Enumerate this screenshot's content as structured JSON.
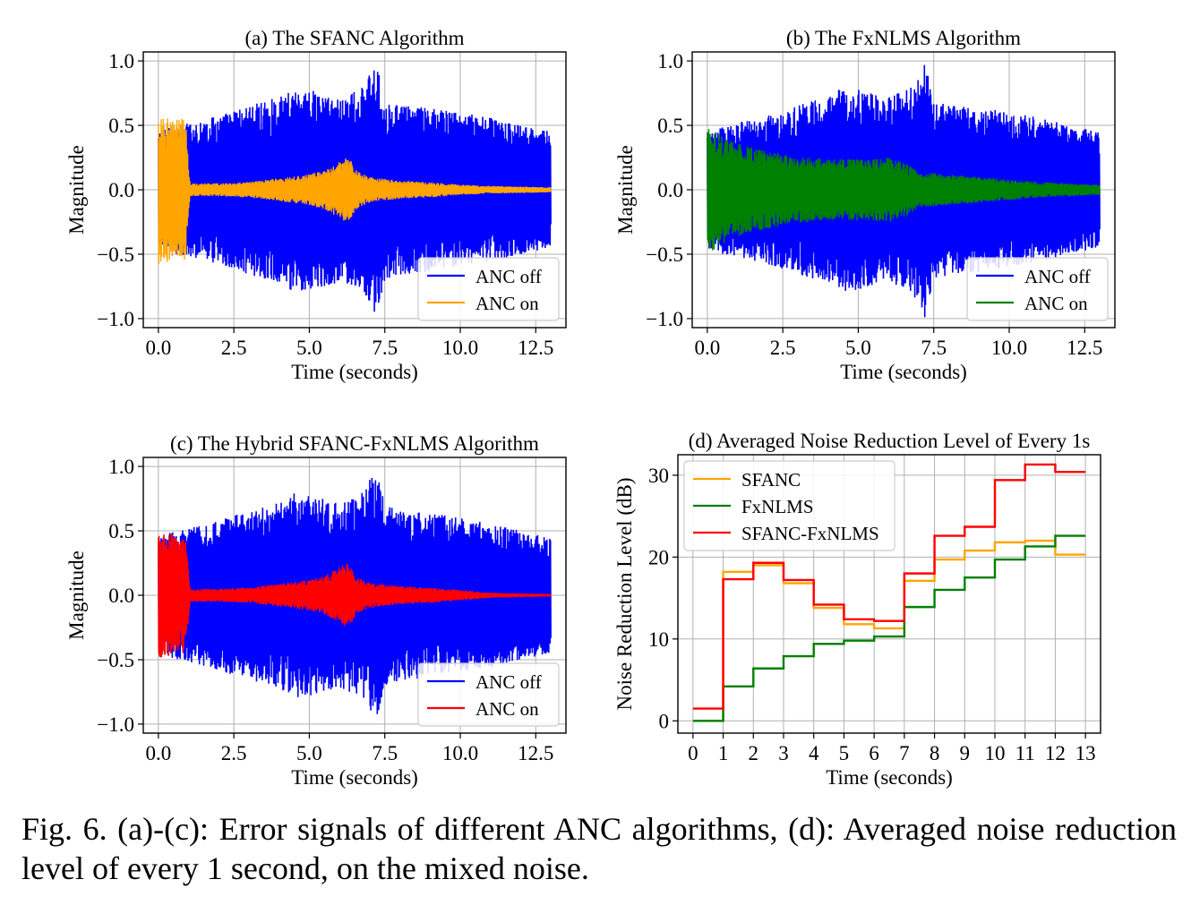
{
  "caption": "Fig. 6.  (a)-(c): Error signals of different ANC algorithms, (d): Averaged noise reduction level of every 1 second, on the mixed noise.",
  "chart_data": [
    {
      "type": "line",
      "panel": "a",
      "title": "(a) The SFANC Algorithm",
      "xlabel": "Time (seconds)",
      "ylabel": "Magnitude",
      "xlim": [
        -0.5,
        13.5
      ],
      "ylim": [
        -1.07,
        1.07
      ],
      "x_ticks": [
        "0.0",
        "2.5",
        "5.0",
        "7.5",
        "10.0",
        "12.5"
      ],
      "y_ticks": [
        "−1.0",
        "−0.5",
        "0.0",
        "0.5",
        "1.0"
      ],
      "grid": true,
      "legend_position": "lower-right",
      "series": [
        {
          "name": "ANC off",
          "color": "#0000ff",
          "envelope_time": [
            0,
            0.5,
            1,
            2,
            3,
            4,
            4.5,
            5,
            6,
            6.8,
            7.2,
            7.5,
            8,
            9,
            10,
            11,
            12,
            13
          ],
          "envelope_amplitude": [
            0.45,
            0.5,
            0.52,
            0.58,
            0.66,
            0.72,
            0.8,
            0.78,
            0.72,
            0.8,
            1.0,
            0.7,
            0.66,
            0.64,
            0.6,
            0.56,
            0.5,
            0.45
          ]
        },
        {
          "name": "ANC on",
          "color": "#ffa500",
          "envelope_time": [
            0,
            0.9,
            1.05,
            2,
            3,
            4,
            5,
            5.5,
            6,
            6.3,
            6.6,
            7,
            8,
            9,
            10,
            11,
            12,
            13
          ],
          "envelope_amplitude": [
            0.58,
            0.55,
            0.05,
            0.05,
            0.06,
            0.09,
            0.12,
            0.15,
            0.22,
            0.26,
            0.14,
            0.1,
            0.07,
            0.06,
            0.04,
            0.03,
            0.025,
            0.02
          ]
        }
      ]
    },
    {
      "type": "line",
      "panel": "b",
      "title": "(b) The FxNLMS Algorithm",
      "xlabel": "Time (seconds)",
      "ylabel": "Magnitude",
      "xlim": [
        -0.5,
        13.5
      ],
      "ylim": [
        -1.07,
        1.07
      ],
      "x_ticks": [
        "0.0",
        "2.5",
        "5.0",
        "7.5",
        "10.0",
        "12.5"
      ],
      "y_ticks": [
        "−1.0",
        "−0.5",
        "0.0",
        "0.5",
        "1.0"
      ],
      "grid": true,
      "legend_position": "lower-right",
      "series": [
        {
          "name": "ANC off",
          "color": "#0000ff",
          "envelope_time": [
            0,
            0.5,
            1,
            2,
            3,
            4,
            4.5,
            5,
            6,
            6.8,
            7.2,
            7.5,
            8,
            9,
            10,
            11,
            12,
            13
          ],
          "envelope_amplitude": [
            0.45,
            0.5,
            0.52,
            0.58,
            0.66,
            0.72,
            0.8,
            0.78,
            0.72,
            0.8,
            1.0,
            0.7,
            0.66,
            0.64,
            0.6,
            0.56,
            0.5,
            0.45
          ]
        },
        {
          "name": "ANC on",
          "color": "#008000",
          "envelope_time": [
            0,
            0.5,
            1,
            2,
            3,
            4,
            5,
            6,
            6.5,
            7,
            8,
            9,
            10,
            11,
            12,
            13
          ],
          "envelope_amplitude": [
            0.5,
            0.42,
            0.36,
            0.3,
            0.26,
            0.24,
            0.24,
            0.25,
            0.22,
            0.14,
            0.12,
            0.1,
            0.08,
            0.06,
            0.05,
            0.04
          ]
        }
      ]
    },
    {
      "type": "line",
      "panel": "c",
      "title": "(c) The Hybrid SFANC-FxNLMS Algorithm",
      "xlabel": "Time (seconds)",
      "ylabel": "Magnitude",
      "xlim": [
        -0.5,
        13.5
      ],
      "ylim": [
        -1.07,
        1.07
      ],
      "x_ticks": [
        "0.0",
        "2.5",
        "5.0",
        "7.5",
        "10.0",
        "12.5"
      ],
      "y_ticks": [
        "−1.0",
        "−0.5",
        "0.0",
        "0.5",
        "1.0"
      ],
      "grid": true,
      "legend_position": "lower-right",
      "series": [
        {
          "name": "ANC off",
          "color": "#0000ff",
          "envelope_time": [
            0,
            0.5,
            1,
            2,
            3,
            4,
            4.5,
            5,
            6,
            6.8,
            7.2,
            7.5,
            8,
            9,
            10,
            11,
            12,
            13
          ],
          "envelope_amplitude": [
            0.45,
            0.5,
            0.52,
            0.58,
            0.66,
            0.72,
            0.8,
            0.78,
            0.72,
            0.8,
            1.0,
            0.7,
            0.66,
            0.64,
            0.6,
            0.56,
            0.5,
            0.45
          ]
        },
        {
          "name": "ANC on",
          "color": "#ff0000",
          "envelope_time": [
            0,
            0.9,
            1.05,
            2,
            3,
            4,
            5,
            5.5,
            6,
            6.3,
            6.6,
            7,
            8,
            9,
            10,
            11,
            12,
            13
          ],
          "envelope_amplitude": [
            0.5,
            0.45,
            0.05,
            0.05,
            0.06,
            0.09,
            0.12,
            0.15,
            0.22,
            0.26,
            0.14,
            0.1,
            0.07,
            0.06,
            0.04,
            0.02,
            0.015,
            0.01
          ]
        }
      ]
    },
    {
      "type": "line",
      "panel": "d",
      "step": "post",
      "title": "(d) Averaged Noise Reduction Level of Every 1s",
      "xlabel": "Time (seconds)",
      "ylabel": "Noise Reduction Level (dB)",
      "xlim": [
        -0.5,
        13.5
      ],
      "ylim": [
        -1.5,
        32.5
      ],
      "x_ticks": [
        "0",
        "1",
        "2",
        "3",
        "4",
        "5",
        "6",
        "7",
        "8",
        "9",
        "10",
        "11",
        "12",
        "13"
      ],
      "y_ticks": [
        "0",
        "10",
        "20",
        "30"
      ],
      "grid": true,
      "legend_position": "upper-left",
      "x": [
        0,
        1,
        2,
        3,
        4,
        5,
        6,
        7,
        8,
        9,
        10,
        11,
        12,
        13
      ],
      "series": [
        {
          "name": "SFANC",
          "color": "#ffa500",
          "values": [
            0.0,
            18.2,
            19.0,
            16.8,
            13.8,
            11.8,
            11.3,
            17.1,
            19.7,
            20.8,
            21.8,
            22.0,
            20.3,
            20.3
          ]
        },
        {
          "name": "FxNLMS",
          "color": "#008000",
          "values": [
            0.0,
            4.2,
            6.4,
            7.9,
            9.4,
            9.8,
            10.3,
            13.9,
            16.0,
            17.5,
            19.7,
            21.3,
            22.6,
            22.6
          ]
        },
        {
          "name": "SFANC-FxNLMS",
          "color": "#ff0000",
          "values": [
            1.5,
            17.3,
            19.3,
            17.2,
            14.2,
            12.4,
            12.2,
            18.0,
            22.6,
            23.7,
            29.4,
            31.3,
            30.4,
            30.4
          ]
        }
      ]
    }
  ]
}
